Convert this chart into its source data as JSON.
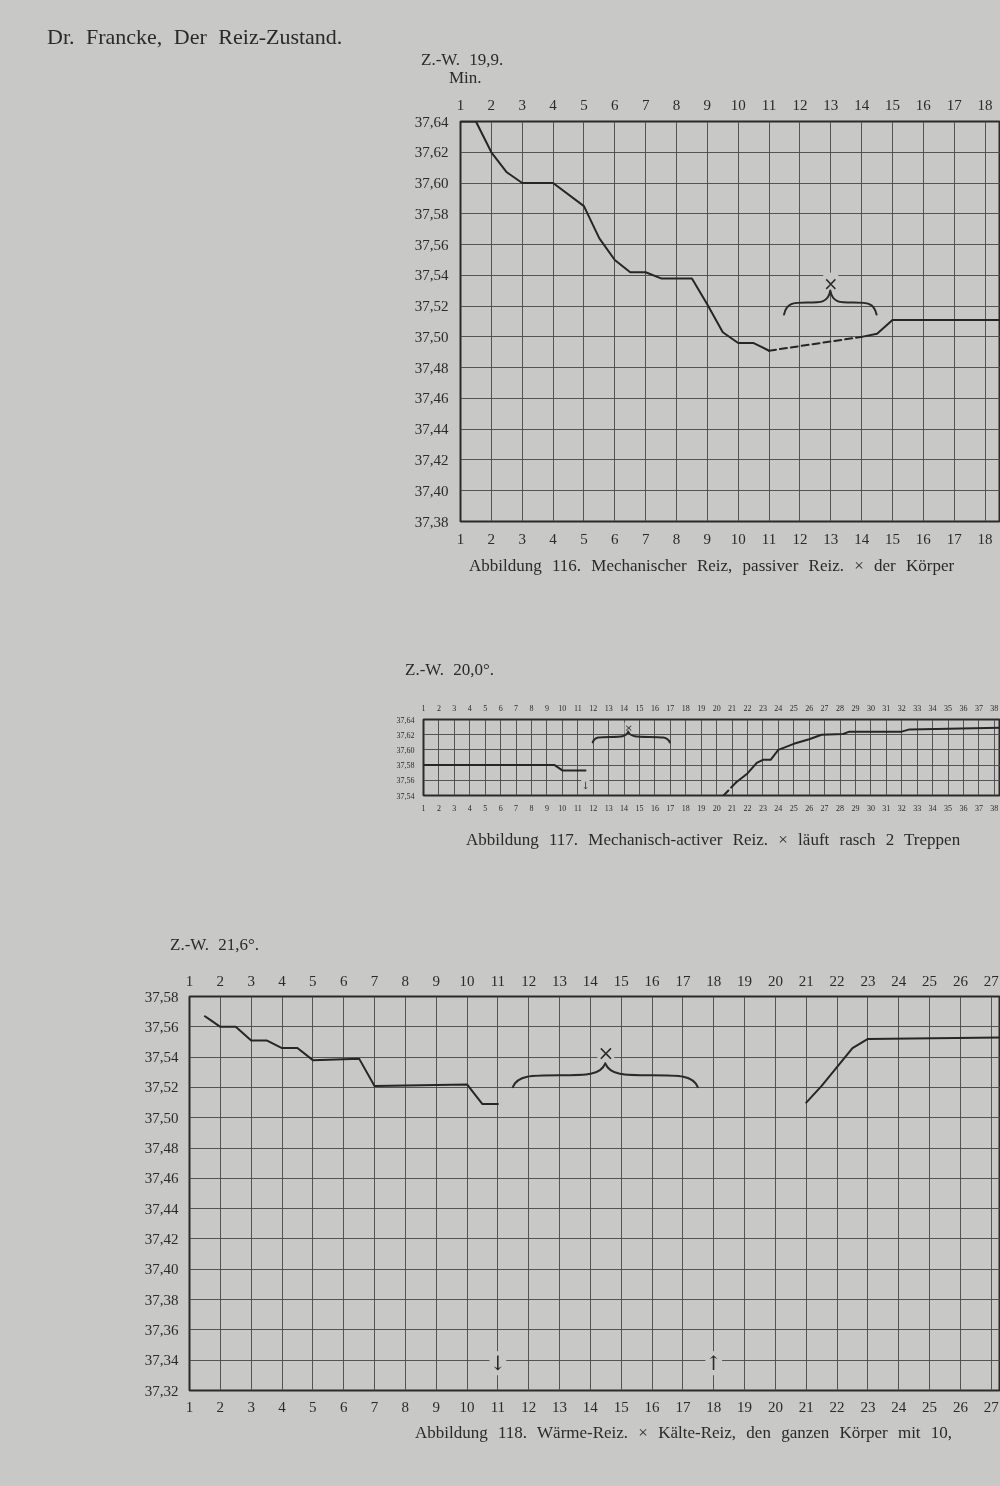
{
  "chart_data": [
    {
      "type": "line",
      "title": "Dr. Francke, Der Reiz-Zustand.",
      "subtitle": "Z.-W. 19,9.",
      "xlabel": "Min.",
      "xlim": [
        1,
        18.5
      ],
      "xticks": [
        1,
        2,
        3,
        4,
        5,
        6,
        7,
        8,
        9,
        10,
        11,
        12,
        13,
        14,
        15,
        16,
        17,
        18
      ],
      "x2lim": [
        1,
        18.5
      ],
      "x2ticks": [
        1,
        2,
        3,
        4,
        5,
        6,
        7,
        8,
        9,
        10,
        11,
        12,
        13,
        14,
        15,
        16,
        17,
        18
      ],
      "ylim": [
        37.38,
        37.64
      ],
      "yticks": [
        {
          "value": 37.38,
          "label": "37,38"
        },
        {
          "value": 37.4,
          "label": "37,40"
        },
        {
          "value": 37.42,
          "label": "37,42"
        },
        {
          "value": 37.44,
          "label": "37,44"
        },
        {
          "value": 37.46,
          "label": "37,46"
        },
        {
          "value": 37.48,
          "label": "37,48"
        },
        {
          "value": 37.5,
          "label": "37,50"
        },
        {
          "value": 37.52,
          "label": "37,52"
        },
        {
          "value": 37.54,
          "label": "37,54"
        },
        {
          "value": 37.56,
          "label": "37,56"
        },
        {
          "value": 37.58,
          "label": "37,58"
        },
        {
          "value": 37.6,
          "label": "37,60"
        },
        {
          "value": 37.62,
          "label": "37,62"
        },
        {
          "value": 37.64,
          "label": "37,64"
        }
      ],
      "grid": true,
      "series": [
        {
          "color": "#262626",
          "x": [
            1,
            1.5,
            2,
            2.5,
            3,
            4,
            5,
            5.5,
            6,
            6.5,
            7,
            7.5,
            8.5,
            9,
            9.5,
            10,
            10.5,
            11
          ],
          "values": [
            37.64,
            37.64,
            37.62,
            37.607,
            37.6,
            37.6,
            37.585,
            37.564,
            37.55,
            37.542,
            37.542,
            37.538,
            37.538,
            37.521,
            37.503,
            37.496,
            37.496,
            37.491
          ]
        },
        {
          "color": "#262626",
          "line_style": "dashed",
          "x": [
            11,
            14
          ],
          "values": [
            37.491,
            37.5
          ]
        },
        {
          "color": "#262626",
          "x": [
            14,
            14.5,
            15,
            18.5
          ],
          "values": [
            37.5,
            37.502,
            37.511,
            37.511
          ]
        }
      ],
      "annotations": [
        "×",
        "Abbildung 116. Mechanischer Reiz, passiver Reiz. × der Körper"
      ]
    },
    {
      "type": "line",
      "title": "Z.-W. 20,0°.",
      "xlim": [
        1,
        38.4
      ],
      "xticks": [
        1,
        2,
        3,
        4,
        5,
        6,
        7,
        8,
        9,
        10,
        11,
        12,
        13,
        14,
        15,
        16,
        17,
        18,
        19,
        20,
        21,
        22,
        23,
        24,
        25,
        26,
        27,
        28,
        29,
        30,
        31,
        32,
        33,
        34,
        35,
        36,
        37,
        38
      ],
      "x2lim": [
        1,
        38.4
      ],
      "x2ticks": [
        1,
        2,
        3,
        4,
        5,
        6,
        7,
        8,
        9,
        10,
        11,
        12,
        13,
        14,
        15,
        16,
        17,
        18,
        19,
        20,
        21,
        22,
        23,
        24,
        25,
        26,
        27,
        28,
        29,
        30,
        31,
        32,
        33,
        34,
        35,
        36,
        37,
        38
      ],
      "ylim": [
        37.54,
        37.64
      ],
      "yticks": [
        {
          "value": 37.54,
          "label": "37,54"
        },
        {
          "value": 37.56,
          "label": "37,56"
        },
        {
          "value": 37.58,
          "label": "37,58"
        },
        {
          "value": 37.6,
          "label": "37,60"
        },
        {
          "value": 37.62,
          "label": "37,62"
        },
        {
          "value": 37.64,
          "label": "37,64"
        }
      ],
      "grid": true,
      "series": [
        {
          "color": "#262626",
          "x": [
            1,
            9.5,
            10,
            11.5
          ],
          "values": [
            37.58,
            37.58,
            37.573,
            37.573
          ]
        },
        {
          "color": "#262626",
          "line_style": "dashed",
          "x": [
            20.45,
            21.25
          ],
          "values": [
            37.54,
            37.557
          ]
        },
        {
          "color": "#262626",
          "x": [
            21.25,
            22,
            22.6,
            23,
            23.5,
            24,
            25,
            26,
            26.8,
            28.2,
            28.6,
            32,
            32.5,
            38.4
          ],
          "values": [
            37.557,
            37.569,
            37.583,
            37.587,
            37.587,
            37.6,
            37.608,
            37.614,
            37.62,
            37.621,
            37.624,
            37.624,
            37.627,
            37.629
          ]
        }
      ],
      "annotations": [
        "×",
        "↓",
        "Abbildung 117. Mechanisch-activer Reiz. × läuft rasch 2 Treppen"
      ]
    },
    {
      "type": "line",
      "title": "Z.-W. 21,6°.",
      "xlim": [
        1,
        27.3
      ],
      "xticks": [
        1,
        2,
        3,
        4,
        5,
        6,
        7,
        8,
        9,
        10,
        11,
        12,
        13,
        14,
        15,
        16,
        17,
        18,
        19,
        20,
        21,
        22,
        23,
        24,
        25,
        26,
        27
      ],
      "x2lim": [
        1,
        27.3
      ],
      "x2ticks": [
        1,
        2,
        3,
        4,
        5,
        6,
        7,
        8,
        9,
        10,
        11,
        12,
        13,
        14,
        15,
        16,
        17,
        18,
        19,
        20,
        21,
        22,
        23,
        24,
        25,
        26,
        27
      ],
      "ylim": [
        37.32,
        37.58
      ],
      "yticks": [
        {
          "value": 37.32,
          "label": "37,32"
        },
        {
          "value": 37.34,
          "label": "37,34"
        },
        {
          "value": 37.36,
          "label": "37,36"
        },
        {
          "value": 37.38,
          "label": "37,38"
        },
        {
          "value": 37.4,
          "label": "37,40"
        },
        {
          "value": 37.42,
          "label": "37,42"
        },
        {
          "value": 37.44,
          "label": "37,44"
        },
        {
          "value": 37.46,
          "label": "37,46"
        },
        {
          "value": 37.48,
          "label": "37,48"
        },
        {
          "value": 37.5,
          "label": "37,50"
        },
        {
          "value": 37.52,
          "label": "37,52"
        },
        {
          "value": 37.54,
          "label": "37,54"
        },
        {
          "value": 37.56,
          "label": "37,56"
        },
        {
          "value": 37.58,
          "label": "37,58"
        }
      ],
      "grid": true,
      "series": [
        {
          "color": "#262626",
          "x": [
            1.5,
            2,
            2.5,
            3,
            3.5,
            4,
            4.5,
            5,
            6.5,
            7,
            10,
            10.5,
            11
          ],
          "values": [
            37.567,
            37.56,
            37.56,
            37.551,
            37.551,
            37.546,
            37.546,
            37.538,
            37.539,
            37.521,
            37.522,
            37.509,
            37.509
          ]
        },
        {
          "color": "#262626",
          "x": [
            21,
            21.5,
            22.5,
            23,
            27.3
          ],
          "values": [
            37.51,
            37.521,
            37.546,
            37.552,
            37.553
          ]
        }
      ],
      "annotations": [
        "×",
        "↓",
        "↑",
        "Abbildung 118. Wärme-Reiz. × Kälte-Reiz, den ganzen Körper mit 10,"
      ]
    }
  ]
}
